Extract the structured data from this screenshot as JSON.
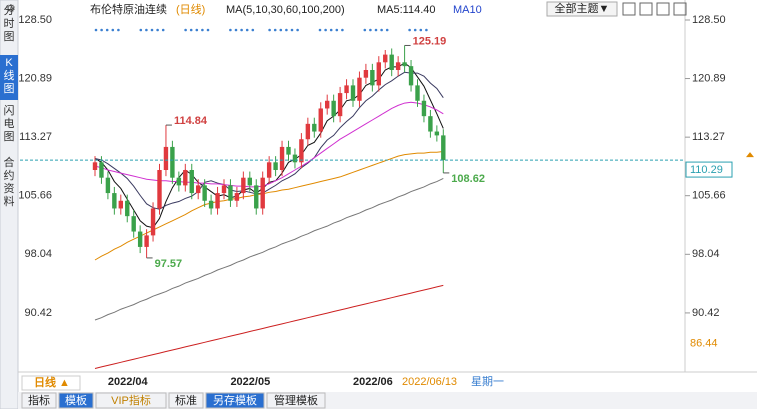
{
  "header": {
    "title": "布伦特原油连续",
    "period": "(日线)",
    "legend": [
      "MA(5,10,30,60,100,200)",
      "MA5:114.40",
      "MA10"
    ],
    "theme_button": "全部主题▼"
  },
  "sidebar": [
    "分时图",
    "K线图",
    "闪电图",
    "合约资料"
  ],
  "footer": {
    "period_button": "日线 ▲",
    "cursor_date": "2022/06/13",
    "cursor_weekday": "星期一",
    "tabs": [
      "指标",
      "模板",
      "VIP指标",
      "标准",
      "另存模板",
      "管理模板"
    ]
  },
  "chart_data": {
    "type": "candlestick",
    "categories": [
      null,
      null,
      "2022/04",
      null,
      null,
      null,
      null,
      null,
      null,
      null,
      null,
      null,
      null,
      null,
      null,
      null,
      null,
      null,
      null,
      null,
      null,
      "2022/05",
      null,
      null,
      null,
      null,
      null,
      null,
      null,
      null,
      null,
      null,
      null,
      null,
      null,
      null,
      null,
      null,
      null,
      null,
      "2022/06",
      null,
      null,
      null,
      null,
      null,
      null,
      null,
      null,
      null,
      null,
      null,
      null,
      null,
      null
    ],
    "open": [
      109,
      110,
      108,
      106,
      104,
      105,
      103,
      101,
      99,
      100.5,
      104,
      109,
      112,
      108,
      107,
      109,
      106,
      107,
      105,
      104,
      106,
      107,
      105,
      106,
      108,
      107,
      104,
      108,
      110,
      109,
      112,
      111,
      110,
      113,
      115,
      114,
      117,
      118,
      116,
      119,
      120,
      118,
      121,
      122,
      120,
      123,
      124,
      122,
      123,
      122.5,
      120,
      118,
      116,
      114,
      113.5
    ],
    "high": [
      110.8,
      110.8,
      108.8,
      106.8,
      105.8,
      105.8,
      103.8,
      101.8,
      101.3,
      104.8,
      109.8,
      114.84,
      112.8,
      108.8,
      109.8,
      109.8,
      107.8,
      107.8,
      105.8,
      106.8,
      107.8,
      107.8,
      106.8,
      108.8,
      108.8,
      107.8,
      108.8,
      110.8,
      110.8,
      112.8,
      112.8,
      111.8,
      113.8,
      115.8,
      115.8,
      117.8,
      118.8,
      118.8,
      119.8,
      120.8,
      120.8,
      121.8,
      122.8,
      122.8,
      123.8,
      124.6,
      124.8,
      123.8,
      125.19,
      123.3,
      120.8,
      118.8,
      116.8,
      114.8,
      114.3
    ],
    "low": [
      108.2,
      107.2,
      105.2,
      103.2,
      103.2,
      102.2,
      100.2,
      98.2,
      97.57,
      99.7,
      103.2,
      108.2,
      107.2,
      106.2,
      106.2,
      105.2,
      105.2,
      104.2,
      103.2,
      103.2,
      105.2,
      104.2,
      104.2,
      105.2,
      106.2,
      103.2,
      103.2,
      107.2,
      108.2,
      108.2,
      110.2,
      109.2,
      109.2,
      112.2,
      113.2,
      113.2,
      116.2,
      115.2,
      115.2,
      118.2,
      117.2,
      117.2,
      120.2,
      119.2,
      119.2,
      122.2,
      121.2,
      121.2,
      121.7,
      119.2,
      117.2,
      115.2,
      113.2,
      112.7,
      108.62
    ],
    "close": [
      110,
      108,
      106,
      104,
      105,
      103,
      101,
      99,
      100.5,
      104,
      109,
      112,
      108,
      107,
      109,
      106,
      107,
      105,
      104,
      106,
      107,
      105,
      106,
      108,
      107,
      104,
      108,
      110,
      109,
      112,
      111,
      110,
      113,
      115,
      114,
      117,
      118,
      116,
      119,
      120,
      118,
      121,
      122,
      120,
      123,
      124,
      122,
      123,
      122.5,
      120,
      118,
      116,
      114,
      113.5,
      110.29
    ],
    "up_color": "#e0393e",
    "down_color": "#3aa14a",
    "ma": [
      {
        "color": "#111111",
        "values": [
          110.5,
          110,
          109,
          107.5,
          106.6,
          105.2,
          103.8,
          102.4,
          101.7,
          101.5,
          102.7,
          104.9,
          106.7,
          108.0,
          109.0,
          108.4,
          107.4,
          106.8,
          106.2,
          105.6,
          105.8,
          105.4,
          105.6,
          106.4,
          106.6,
          106.0,
          106.6,
          107.4,
          107.6,
          108.6,
          110.0,
          110.4,
          111.0,
          112.2,
          112.6,
          113.8,
          115.4,
          116.0,
          116.8,
          118.0,
          118.2,
          118.8,
          120.0,
          120.4,
          120.8,
          122.0,
          122.4,
          122.4,
          122.9,
          122.3,
          121.1,
          119.9,
          118.1,
          116.3,
          114.4
        ]
      },
      {
        "color": "#3a3a60",
        "values": [
          110.5,
          110.3,
          109.8,
          109.2,
          108.6,
          107.9,
          106.9,
          105.7,
          104.6,
          104.1,
          103.9,
          104.4,
          104.7,
          104.9,
          105.3,
          105.6,
          106.2,
          107.4,
          107.6,
          107.3,
          107.1,
          106.4,
          106.2,
          106.3,
          106.1,
          105.9,
          106.0,
          106.5,
          107.0,
          107.6,
          108.0,
          108.5,
          109.3,
          109.9,
          110.6,
          111.9,
          112.9,
          113.5,
          114.5,
          115.3,
          116.0,
          117.1,
          118.0,
          118.6,
          119.4,
          120.1,
          120.6,
          121.2,
          121.7,
          121.6,
          121.6,
          121.2,
          120.3,
          119.6,
          118.4
        ]
      },
      {
        "color": "#d030d0",
        "values": [
          109.5,
          109.3,
          109.0,
          108.8,
          108.6,
          108.4,
          108.2,
          108.0,
          107.8,
          107.7,
          107.6,
          107.6,
          107.5,
          107.5,
          107.4,
          107.4,
          107.3,
          107.3,
          107.2,
          107.2,
          107.1,
          107.0,
          106.9,
          106.9,
          106.8,
          106.8,
          106.9,
          107.2,
          107.6,
          108.0,
          108.5,
          109.0,
          109.5,
          110.0,
          110.6,
          111.2,
          111.8,
          112.4,
          113.0,
          113.5,
          114.0,
          114.5,
          115.0,
          115.5,
          116.0,
          116.5,
          117.0,
          117.4,
          117.7,
          117.8,
          117.7,
          117.5,
          117.2,
          116.8,
          116.3
        ]
      },
      {
        "color": "#e08a00",
        "values": [
          97.3,
          97.8,
          98.2,
          98.7,
          99.1,
          99.6,
          100.0,
          100.4,
          100.8,
          101.2,
          101.6,
          102.0,
          102.4,
          102.8,
          103.2,
          103.7,
          104.1,
          104.5,
          104.7,
          104.9,
          105.0,
          105.2,
          105.3,
          105.5,
          105.6,
          105.8,
          105.9,
          106.1,
          106.2,
          106.4,
          106.5,
          106.7,
          106.9,
          107.1,
          107.3,
          107.5,
          107.7,
          107.9,
          108.1,
          108.4,
          108.7,
          109.0,
          109.3,
          109.6,
          109.9,
          110.2,
          110.5,
          110.8,
          111.0,
          111.1,
          111.2,
          111.2,
          111.3,
          111.3,
          111.4
        ]
      },
      {
        "color": "#777777",
        "values": [
          89.5,
          89.8,
          90.2,
          90.5,
          90.9,
          91.2,
          91.5,
          91.9,
          92.2,
          92.6,
          92.9,
          93.2,
          93.6,
          93.9,
          94.3,
          94.6,
          94.9,
          95.3,
          95.6,
          96.0,
          96.3,
          96.6,
          97.0,
          97.3,
          97.7,
          98.0,
          98.3,
          98.7,
          99.0,
          99.4,
          99.7,
          100.0,
          100.4,
          100.7,
          101.1,
          101.4,
          101.7,
          102.1,
          102.4,
          102.8,
          103.1,
          103.4,
          103.8,
          104.1,
          104.5,
          104.8,
          105.1,
          105.5,
          105.8,
          106.2,
          106.5,
          106.8,
          107.2,
          107.5,
          107.9
        ]
      },
      {
        "color": "#cc2020",
        "values": [
          83.2,
          83.4,
          83.6,
          83.8,
          84.0,
          84.2,
          84.4,
          84.6,
          84.8,
          85.0,
          85.2,
          85.4,
          85.6,
          85.8,
          86.0,
          86.2,
          86.4,
          86.6,
          86.8,
          87.0,
          87.2,
          87.4,
          87.6,
          87.8,
          88.0,
          88.2,
          88.4,
          88.6,
          88.8,
          89.0,
          89.2,
          89.4,
          89.6,
          89.8,
          90.0,
          90.2,
          90.4,
          90.6,
          90.8,
          91.0,
          91.2,
          91.4,
          91.6,
          91.8,
          92.0,
          92.2,
          92.4,
          92.6,
          92.8,
          93.0,
          93.2,
          93.4,
          93.6,
          93.8,
          94.0
        ]
      }
    ],
    "annotations": [
      {
        "index": 48,
        "field": "high",
        "color": "#d04040"
      },
      {
        "index": 11,
        "field": "high",
        "color": "#d04040"
      },
      {
        "index": 8,
        "field": "low",
        "color": "#4caa4c"
      },
      {
        "index": 54,
        "field": "low",
        "color": "#4caa4c"
      }
    ],
    "scale_mark": 86.44,
    "ylim": [
      83.0,
      130.06
    ],
    "yticks": [
      {
        "value": 128.5,
        "label": "128.50"
      },
      120.89,
      113.27,
      105.66,
      98.04,
      90.42
    ]
  }
}
